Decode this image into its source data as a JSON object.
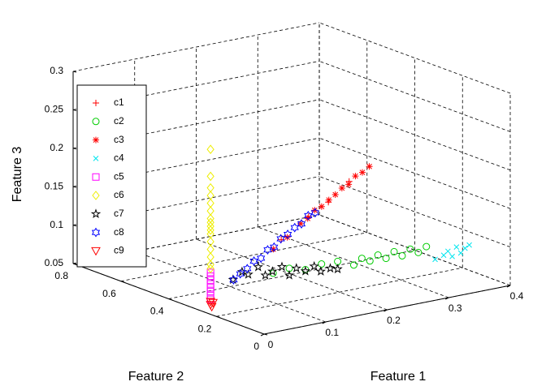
{
  "chart_data": {
    "type": "scatter3d",
    "xlabel": "Feature 1",
    "ylabel": "Feature 2",
    "zlabel": "Feature 3",
    "xlim": [
      0,
      0.4
    ],
    "ylim": [
      0,
      0.8
    ],
    "zlim": [
      0.05,
      0.3
    ],
    "xticks": [
      0,
      0.1,
      0.2,
      0.3,
      0.4
    ],
    "yticks": [
      0,
      0.2,
      0.4,
      0.6,
      0.8
    ],
    "zticks": [
      0.05,
      0.1,
      0.15,
      0.2,
      0.25,
      0.3
    ],
    "grid": true,
    "series": [
      {
        "name": "c1",
        "color": "#ff0000",
        "marker": "plus",
        "x": [
          0.152,
          0.188,
          0.215,
          0.241
        ],
        "y": [
          0.32,
          0.298,
          0.285,
          0.265
        ],
        "z": [
          0.112,
          0.139,
          0.155,
          0.18
        ]
      },
      {
        "name": "c2",
        "color": "#00cc00",
        "marker": "circle",
        "x": [
          0.14,
          0.16,
          0.18,
          0.2,
          0.22,
          0.24,
          0.25,
          0.26,
          0.27,
          0.28,
          0.29,
          0.3,
          0.31,
          0.32,
          0.33
        ],
        "y": [
          0.323,
          0.307,
          0.291,
          0.275,
          0.259,
          0.243,
          0.235,
          0.227,
          0.219,
          0.211,
          0.203,
          0.195,
          0.187,
          0.179,
          0.171
        ],
        "z": [
          0.07,
          0.075,
          0.072,
          0.078,
          0.08,
          0.074,
          0.082,
          0.078,
          0.085,
          0.08,
          0.088,
          0.082,
          0.09,
          0.085,
          0.092
        ]
      },
      {
        "name": "c3",
        "color": "#ff0000",
        "marker": "asterisk",
        "x": [
          0.143,
          0.161,
          0.179,
          0.188,
          0.197,
          0.206,
          0.215,
          0.224,
          0.232,
          0.241,
          0.25,
          0.259,
          0.268
        ],
        "y": [
          0.33,
          0.318,
          0.308,
          0.302,
          0.296,
          0.29,
          0.283,
          0.279,
          0.272,
          0.267,
          0.262,
          0.256,
          0.25
        ],
        "z": [
          0.1,
          0.114,
          0.13,
          0.136,
          0.146,
          0.15,
          0.158,
          0.164,
          0.172,
          0.176,
          0.186,
          0.19,
          0.197
        ]
      },
      {
        "name": "c4",
        "color": "#00e5ee",
        "marker": "cross",
        "x": [
          0.34,
          0.35,
          0.355,
          0.36,
          0.365,
          0.37,
          0.375,
          0.38
        ],
        "y": [
          0.16,
          0.15,
          0.145,
          0.14,
          0.135,
          0.13,
          0.125,
          0.12
        ],
        "z": [
          0.075,
          0.08,
          0.085,
          0.078,
          0.09,
          0.082,
          0.088,
          0.092
        ]
      },
      {
        "name": "c5",
        "color": "#ff00ff",
        "marker": "square",
        "x": [
          0.01,
          0.01,
          0.01,
          0.01,
          0.01,
          0.01,
          0.01,
          0.01
        ],
        "y": [
          0.25,
          0.25,
          0.25,
          0.25,
          0.25,
          0.25,
          0.25,
          0.25
        ],
        "z": [
          0.065,
          0.07,
          0.075,
          0.08,
          0.085,
          0.09,
          0.095,
          0.1
        ]
      },
      {
        "name": "c6",
        "color": "#eeee00",
        "marker": "diamond",
        "x": [
          0.01,
          0.01,
          0.01,
          0.01,
          0.01,
          0.01,
          0.01,
          0.01,
          0.01,
          0.01,
          0.01,
          0.01,
          0.01,
          0.01,
          0.01,
          0.01
        ],
        "y": [
          0.25,
          0.25,
          0.25,
          0.25,
          0.25,
          0.25,
          0.25,
          0.25,
          0.25,
          0.25,
          0.25,
          0.25,
          0.25,
          0.25,
          0.25,
          0.25
        ],
        "z": [
          0.105,
          0.11,
          0.12,
          0.13,
          0.14,
          0.15,
          0.155,
          0.16,
          0.165,
          0.17,
          0.18,
          0.19,
          0.2,
          0.21,
          0.225,
          0.26
        ]
      },
      {
        "name": "c7",
        "color": "#000000",
        "marker": "pentagram",
        "x": [
          0.09,
          0.1,
          0.11,
          0.12,
          0.13,
          0.14,
          0.15,
          0.16,
          0.17,
          0.18,
          0.19,
          0.2,
          0.21,
          0.22
        ],
        "y": [
          0.362,
          0.35,
          0.35,
          0.334,
          0.33,
          0.326,
          0.312,
          0.307,
          0.303,
          0.291,
          0.28,
          0.278,
          0.264,
          0.259
        ],
        "z": [
          0.065,
          0.075,
          0.07,
          0.08,
          0.068,
          0.072,
          0.078,
          0.066,
          0.074,
          0.07,
          0.076,
          0.068,
          0.072,
          0.07
        ]
      },
      {
        "name": "c8",
        "color": "#0000ff",
        "marker": "hexagram",
        "x": [
          0.09,
          0.099,
          0.108,
          0.117,
          0.126,
          0.135,
          0.143,
          0.152,
          0.161,
          0.17,
          0.179,
          0.188,
          0.197
        ],
        "y": [
          0.36,
          0.355,
          0.349,
          0.344,
          0.338,
          0.333,
          0.327,
          0.322,
          0.316,
          0.31,
          0.305,
          0.3,
          0.294
        ],
        "z": [
          0.065,
          0.072,
          0.078,
          0.087,
          0.09,
          0.1,
          0.103,
          0.113,
          0.118,
          0.126,
          0.13,
          0.14,
          0.143
        ]
      },
      {
        "name": "c9",
        "color": "#ff0000",
        "marker": "triangle-down",
        "x": [
          0.012,
          0.01,
          0.014,
          0.01
        ],
        "y": [
          0.25,
          0.25,
          0.25,
          0.25
        ],
        "z": [
          0.055,
          0.058,
          0.06,
          0.062
        ]
      }
    ]
  }
}
